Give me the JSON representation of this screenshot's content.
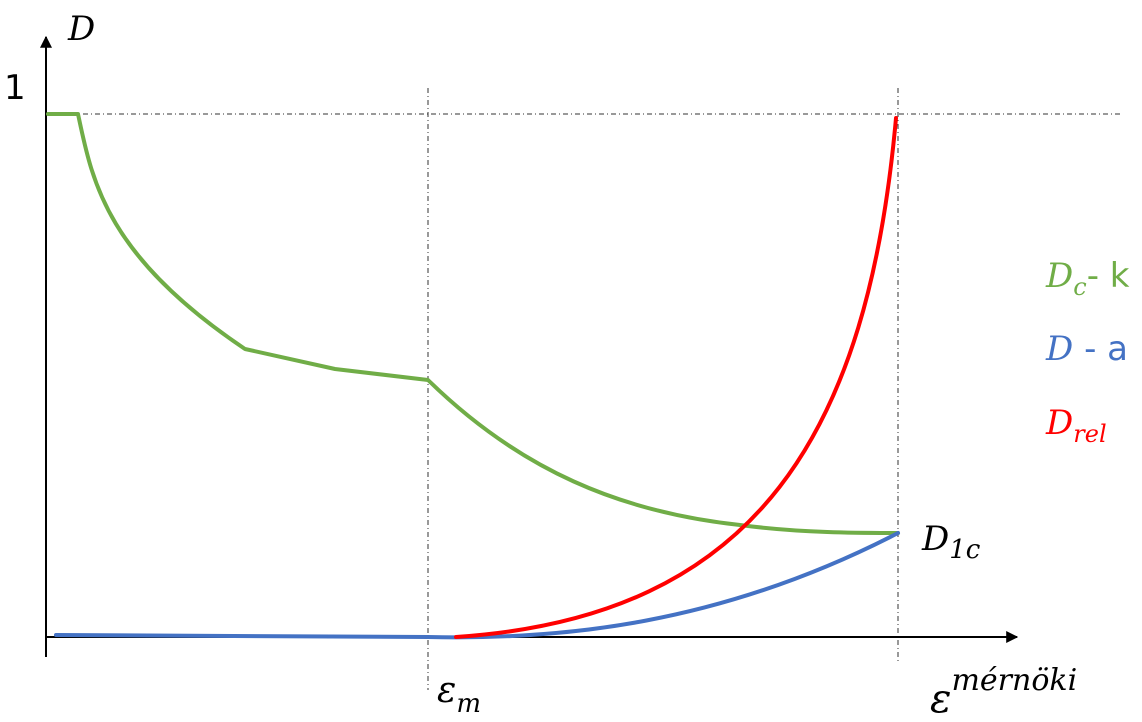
{
  "labels": {
    "y_axis": "D",
    "y_tick_one": "1",
    "x_mark_m_base": "ε",
    "x_mark_m_sub": "m",
    "x_axis_base": "ε",
    "x_axis_sup": "mérnöki",
    "curve_end_base": "D",
    "curve_end_sub": "1c"
  },
  "legend": [
    {
      "base": "D",
      "sub": "c",
      "text": "- k",
      "color": "#70ad47"
    },
    {
      "base": "D",
      "sub": "",
      "text": " - a",
      "color": "#4472c4"
    },
    {
      "base": "D",
      "sub": "rel",
      "text": "",
      "color": "#ff0000"
    }
  ],
  "colors": {
    "green": "#70ad47",
    "blue": "#4472c4",
    "red": "#ff0000",
    "axis": "#000000"
  }
}
